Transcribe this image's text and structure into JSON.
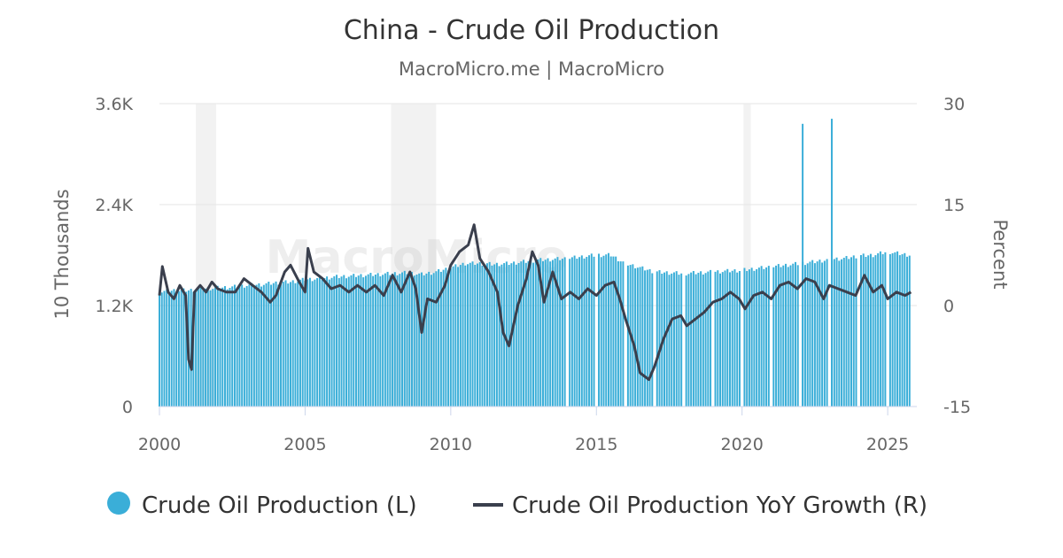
{
  "chart_data": {
    "type": "bar",
    "title": "China - Crude Oil Production",
    "subtitle": "MacroMicro.me | MacroMicro",
    "watermark": "MacroMicro",
    "left_axis": {
      "title": "10 Thousands",
      "ylim": [
        0,
        3600
      ],
      "ticks": [
        0,
        1200,
        2400,
        3600
      ],
      "tick_labels": [
        "0",
        "1.2K",
        "2.4K",
        "3.6K"
      ]
    },
    "right_axis": {
      "title": "Percent",
      "ylim": [
        -15,
        30
      ],
      "ticks": [
        -15,
        0,
        15,
        30
      ],
      "tick_labels": [
        "-15",
        "0",
        "15",
        "30"
      ]
    },
    "x_axis": {
      "range": [
        2000,
        2026
      ],
      "ticks": [
        2000,
        2005,
        2010,
        2015,
        2020,
        2025
      ],
      "tick_labels": [
        "2000",
        "2005",
        "2010",
        "2015",
        "2020",
        "2025"
      ]
    },
    "grid": true,
    "legend_position": "bottom",
    "recession_bands": [
      [
        2001.25,
        2001.95
      ],
      [
        2007.95,
        2009.5
      ],
      [
        2020.05,
        2020.3
      ]
    ],
    "bar_color": "#3aaed8",
    "line_color": "#3a3f4d",
    "series": [
      {
        "name": "Crude Oil Production (L)",
        "axis": "left",
        "type": "bar",
        "points": [
          [
            2000.0,
            1360
          ],
          [
            2000.5,
            1380
          ],
          [
            2001.0,
            1380
          ],
          [
            2001.5,
            1400
          ],
          [
            2002.0,
            1410
          ],
          [
            2002.5,
            1420
          ],
          [
            2003.0,
            1440
          ],
          [
            2003.5,
            1450
          ],
          [
            2004.0,
            1470
          ],
          [
            2004.5,
            1480
          ],
          [
            2005.0,
            1510
          ],
          [
            2005.5,
            1520
          ],
          [
            2006.0,
            1540
          ],
          [
            2006.5,
            1550
          ],
          [
            2007.0,
            1560
          ],
          [
            2007.5,
            1570
          ],
          [
            2008.0,
            1580
          ],
          [
            2008.5,
            1590
          ],
          [
            2009.0,
            1570
          ],
          [
            2009.5,
            1600
          ],
          [
            2010.0,
            1650
          ],
          [
            2010.5,
            1700
          ],
          [
            2011.0,
            1700
          ],
          [
            2011.5,
            1690
          ],
          [
            2012.0,
            1700
          ],
          [
            2012.5,
            1720
          ],
          [
            2013.0,
            1740
          ],
          [
            2013.5,
            1750
          ],
          [
            2014.0,
            1760
          ],
          [
            2014.5,
            1780
          ],
          [
            2015.0,
            1800
          ],
          [
            2015.5,
            1800
          ],
          [
            2016.0,
            1700
          ],
          [
            2016.5,
            1650
          ],
          [
            2017.0,
            1600
          ],
          [
            2017.5,
            1590
          ],
          [
            2018.0,
            1580
          ],
          [
            2018.5,
            1590
          ],
          [
            2019.0,
            1600
          ],
          [
            2019.5,
            1610
          ],
          [
            2020.0,
            1620
          ],
          [
            2020.5,
            1640
          ],
          [
            2021.0,
            1660
          ],
          [
            2021.5,
            1680
          ],
          [
            2022.0,
            1700
          ],
          [
            2022.08,
            3360
          ],
          [
            2022.5,
            1720
          ],
          [
            2023.0,
            1750
          ],
          [
            2023.08,
            3420
          ],
          [
            2023.5,
            1760
          ],
          [
            2024.0,
            1790
          ],
          [
            2024.5,
            1800
          ],
          [
            2025.0,
            1840
          ],
          [
            2025.5,
            1810
          ],
          [
            2025.8,
            1800
          ]
        ]
      },
      {
        "name": "Crude Oil Production YoY Growth (R)",
        "axis": "right",
        "type": "line",
        "points": [
          [
            2000.0,
            1.5
          ],
          [
            2000.1,
            5.8
          ],
          [
            2000.3,
            2.0
          ],
          [
            2000.5,
            1.0
          ],
          [
            2000.7,
            3.0
          ],
          [
            2000.9,
            1.5
          ],
          [
            2001.0,
            -8.0
          ],
          [
            2001.1,
            -9.5
          ],
          [
            2001.2,
            2.0
          ],
          [
            2001.4,
            3.0
          ],
          [
            2001.6,
            2.0
          ],
          [
            2001.8,
            3.5
          ],
          [
            2002.0,
            2.5
          ],
          [
            2002.3,
            2.0
          ],
          [
            2002.6,
            2.0
          ],
          [
            2002.9,
            4.0
          ],
          [
            2003.2,
            3.0
          ],
          [
            2003.5,
            2.0
          ],
          [
            2003.8,
            0.5
          ],
          [
            2004.0,
            1.5
          ],
          [
            2004.3,
            5.0
          ],
          [
            2004.5,
            6.0
          ],
          [
            2004.8,
            3.5
          ],
          [
            2005.0,
            2.0
          ],
          [
            2005.1,
            8.5
          ],
          [
            2005.3,
            5.0
          ],
          [
            2005.6,
            4.0
          ],
          [
            2005.9,
            2.5
          ],
          [
            2006.2,
            3.0
          ],
          [
            2006.5,
            2.0
          ],
          [
            2006.8,
            3.0
          ],
          [
            2007.1,
            2.0
          ],
          [
            2007.4,
            3.0
          ],
          [
            2007.7,
            1.5
          ],
          [
            2008.0,
            4.5
          ],
          [
            2008.3,
            2.0
          ],
          [
            2008.6,
            5.0
          ],
          [
            2008.8,
            2.5
          ],
          [
            2009.0,
            -4.0
          ],
          [
            2009.2,
            1.0
          ],
          [
            2009.5,
            0.5
          ],
          [
            2009.8,
            3.0
          ],
          [
            2010.0,
            6.0
          ],
          [
            2010.3,
            8.0
          ],
          [
            2010.6,
            9.0
          ],
          [
            2010.8,
            12.0
          ],
          [
            2011.0,
            7.0
          ],
          [
            2011.3,
            5.0
          ],
          [
            2011.6,
            2.0
          ],
          [
            2011.8,
            -4.0
          ],
          [
            2012.0,
            -6.0
          ],
          [
            2012.3,
            0.0
          ],
          [
            2012.6,
            4.0
          ],
          [
            2012.8,
            8.0
          ],
          [
            2013.0,
            6.0
          ],
          [
            2013.2,
            0.5
          ],
          [
            2013.5,
            5.0
          ],
          [
            2013.8,
            1.0
          ],
          [
            2014.1,
            2.0
          ],
          [
            2014.4,
            1.0
          ],
          [
            2014.7,
            2.5
          ],
          [
            2015.0,
            1.5
          ],
          [
            2015.3,
            3.0
          ],
          [
            2015.6,
            3.5
          ],
          [
            2015.8,
            1.0
          ],
          [
            2016.0,
            -2.0
          ],
          [
            2016.3,
            -6.0
          ],
          [
            2016.5,
            -10.0
          ],
          [
            2016.8,
            -11.0
          ],
          [
            2017.0,
            -9.0
          ],
          [
            2017.3,
            -5.0
          ],
          [
            2017.6,
            -2.0
          ],
          [
            2017.9,
            -1.5
          ],
          [
            2018.1,
            -3.0
          ],
          [
            2018.4,
            -2.0
          ],
          [
            2018.7,
            -1.0
          ],
          [
            2019.0,
            0.5
          ],
          [
            2019.3,
            1.0
          ],
          [
            2019.6,
            2.0
          ],
          [
            2019.9,
            1.0
          ],
          [
            2020.1,
            -0.5
          ],
          [
            2020.4,
            1.5
          ],
          [
            2020.7,
            2.0
          ],
          [
            2021.0,
            1.0
          ],
          [
            2021.3,
            3.0
          ],
          [
            2021.6,
            3.5
          ],
          [
            2021.9,
            2.5
          ],
          [
            2022.2,
            4.0
          ],
          [
            2022.5,
            3.5
          ],
          [
            2022.8,
            1.0
          ],
          [
            2023.0,
            3.0
          ],
          [
            2023.3,
            2.5
          ],
          [
            2023.6,
            2.0
          ],
          [
            2023.9,
            1.5
          ],
          [
            2024.2,
            4.5
          ],
          [
            2024.5,
            2.0
          ],
          [
            2024.8,
            3.0
          ],
          [
            2025.0,
            1.0
          ],
          [
            2025.3,
            2.0
          ],
          [
            2025.6,
            1.5
          ],
          [
            2025.8,
            2.0
          ]
        ]
      }
    ]
  }
}
